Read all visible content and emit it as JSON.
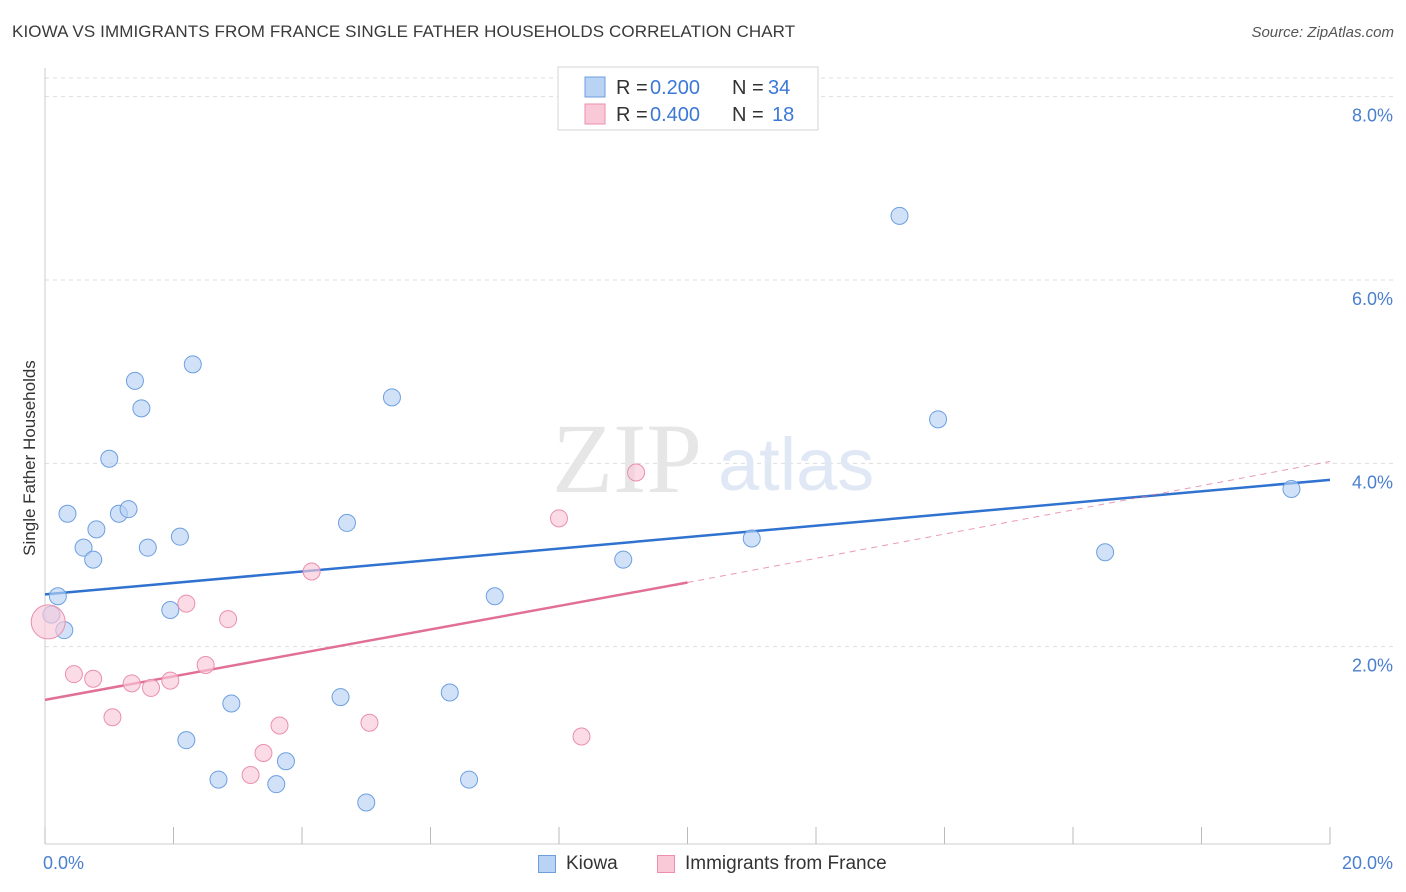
{
  "title": "KIOWA VS IMMIGRANTS FROM FRANCE SINGLE FATHER HOUSEHOLDS CORRELATION CHART",
  "source": "Source: ZipAtlas.com",
  "watermark": {
    "zip": "ZIP",
    "atlas": "atlas"
  },
  "colors": {
    "kiowa_fill": "#b8d3f4",
    "kiowa_stroke": "#6d9fe0",
    "kiowa_line": "#2f72d0",
    "france_fill": "#f9c9d8",
    "france_stroke": "#ea8fae",
    "france_line": "#e16f98",
    "axis_text": "#4a7fd0",
    "grid": "#dddddd"
  },
  "legend": {
    "r_label": "R =",
    "n_label": "N =",
    "series": [
      {
        "r": "0.200",
        "n": "34"
      },
      {
        "r": "0.400",
        "n": "18"
      }
    ]
  },
  "chart_data": {
    "type": "scatter",
    "title": "KIOWA VS IMMIGRANTS FROM FRANCE SINGLE FATHER HOUSEHOLDS CORRELATION CHART",
    "xlabel": "",
    "ylabel": "Single Father Households",
    "xlim": [
      0,
      20
    ],
    "ylim": [
      0,
      8.4
    ],
    "x_tick_labels": {
      "left": "0.0%",
      "right": "20.0%"
    },
    "y_ticks": [
      {
        "value": 2,
        "label": "2.0%"
      },
      {
        "value": 4,
        "label": "4.0%"
      },
      {
        "value": 6,
        "label": "6.0%"
      },
      {
        "value": 8,
        "label": "8.0%"
      }
    ],
    "grid": true,
    "series": [
      {
        "name": "Kiowa",
        "points": [
          [
            0.1,
            2.35
          ],
          [
            0.2,
            2.55
          ],
          [
            0.3,
            2.18
          ],
          [
            0.35,
            3.45
          ],
          [
            0.6,
            3.08
          ],
          [
            0.75,
            2.95
          ],
          [
            0.8,
            3.28
          ],
          [
            1.0,
            4.05
          ],
          [
            1.15,
            3.45
          ],
          [
            1.3,
            3.5
          ],
          [
            1.4,
            4.9
          ],
          [
            1.5,
            4.6
          ],
          [
            1.6,
            3.08
          ],
          [
            1.95,
            2.4
          ],
          [
            2.1,
            3.2
          ],
          [
            2.2,
            0.98
          ],
          [
            2.3,
            5.08
          ],
          [
            2.7,
            0.55
          ],
          [
            2.9,
            1.38
          ],
          [
            3.6,
            0.5
          ],
          [
            3.75,
            0.75
          ],
          [
            4.6,
            1.45
          ],
          [
            4.7,
            3.35
          ],
          [
            5.0,
            0.3
          ],
          [
            5.4,
            4.72
          ],
          [
            6.3,
            1.5
          ],
          [
            6.6,
            0.55
          ],
          [
            7.0,
            2.55
          ],
          [
            9.0,
            2.95
          ],
          [
            11.0,
            3.18
          ],
          [
            13.3,
            6.7
          ],
          [
            13.9,
            4.48
          ],
          [
            16.5,
            3.03
          ],
          [
            19.4,
            3.72
          ]
        ],
        "trend": {
          "x0": 0,
          "y0": 2.57,
          "x1": 20,
          "y1": 3.82
        }
      },
      {
        "name": "Immigrants from France",
        "points": [
          [
            0.05,
            2.27
          ],
          [
            0.45,
            1.7
          ],
          [
            0.75,
            1.65
          ],
          [
            1.05,
            1.23
          ],
          [
            1.35,
            1.6
          ],
          [
            1.65,
            1.55
          ],
          [
            1.95,
            1.63
          ],
          [
            2.2,
            2.47
          ],
          [
            2.5,
            1.8
          ],
          [
            2.85,
            2.3
          ],
          [
            3.2,
            0.6
          ],
          [
            3.4,
            0.84
          ],
          [
            3.65,
            1.14
          ],
          [
            4.15,
            2.82
          ],
          [
            5.05,
            1.17
          ],
          [
            8.0,
            3.4
          ],
          [
            8.35,
            1.02
          ],
          [
            9.2,
            3.9
          ]
        ],
        "trend": {
          "x0": 0,
          "y0": 1.42,
          "x1": 10,
          "y1": 2.7
        },
        "trend_extended": {
          "x0": 10,
          "y0": 2.7,
          "x1": 20,
          "y1": 4.02
        }
      }
    ]
  }
}
